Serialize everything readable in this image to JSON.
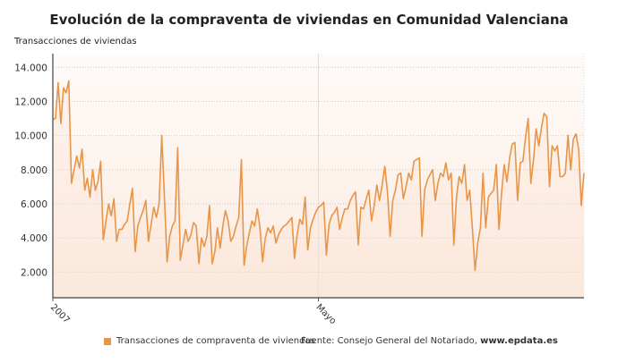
{
  "chart_data": {
    "type": "area",
    "title": "Evolución de la compraventa de viviendas en Comunidad Valenciana",
    "ylabel": "Transacciones de viviendas",
    "xlabel": "",
    "ylim": [
      500,
      14800
    ],
    "yticks": [
      2000,
      4000,
      6000,
      8000,
      10000,
      12000,
      14000
    ],
    "ytick_labels": [
      "2.000",
      "4.000",
      "6.000",
      "8.000",
      "10.000",
      "12.000",
      "14.000"
    ],
    "x_ticks": [
      {
        "label": "2007",
        "index": 0
      },
      {
        "label": "Mayo",
        "index": 100
      }
    ],
    "grid": true,
    "legend_position": "bottom-left",
    "color": "#e8954a",
    "series": [
      {
        "name": "Transacciones de compraventa de viviendas",
        "values": [
          10950,
          11000,
          13100,
          10700,
          12800,
          12500,
          13200,
          7200,
          8000,
          8800,
          8100,
          9200,
          6800,
          7500,
          6400,
          8000,
          6800,
          7300,
          8500,
          3900,
          5000,
          6000,
          5300,
          6300,
          3800,
          4500,
          4500,
          4800,
          5000,
          6000,
          6900,
          3200,
          4700,
          5200,
          5600,
          6200,
          3800,
          4800,
          5800,
          5200,
          6000,
          10000,
          6500,
          2600,
          4100,
          4700,
          5000,
          9300,
          2700,
          3600,
          4500,
          3800,
          4200,
          4900,
          4700,
          2500,
          4000,
          3500,
          4100,
          5900,
          2500,
          3200,
          4600,
          3400,
          4700,
          5600,
          5000,
          3800,
          4100,
          4700,
          5200,
          8600,
          2400,
          3500,
          4300,
          5000,
          4700,
          5700,
          4600,
          2600,
          4000,
          4600,
          4300,
          4700,
          3700,
          4200,
          4500,
          4700,
          4800,
          5000,
          5200,
          2800,
          4200,
          5100,
          4800,
          6400,
          3300,
          4600,
          5100,
          5500,
          5800,
          5900,
          6100,
          3000,
          4800,
          5300,
          5500,
          5800,
          4500,
          5200,
          5700,
          5700,
          6200,
          6500,
          6700,
          3600,
          5800,
          5700,
          6300,
          6800,
          5000,
          5900,
          7100,
          6200,
          7100,
          8200,
          6700,
          4100,
          6200,
          6800,
          7700,
          7800,
          6300,
          7000,
          7800,
          7400,
          8500,
          8600,
          8700,
          4100,
          6800,
          7400,
          7700,
          8000,
          6200,
          7200,
          7800,
          7600,
          8400,
          7400,
          7800,
          3600,
          6400,
          7600,
          7200,
          8300,
          6200,
          6800,
          4500,
          2100,
          3700,
          4600,
          7800,
          4600,
          6400,
          6600,
          6800,
          8300,
          4500,
          6700,
          8300,
          7300,
          8700,
          9500,
          9600,
          6200,
          8400,
          8500,
          9900,
          11000,
          7200,
          8600,
          10400,
          9400,
          10500,
          11300,
          11100,
          7000,
          9400,
          9100,
          9400,
          7600,
          7600,
          7800,
          10000,
          8000,
          9800,
          10100,
          9200,
          5900,
          7800
        ]
      }
    ]
  },
  "legend": {
    "label": "Transacciones de compraventa de viviendas"
  },
  "source": {
    "prefix": "Fuente: Consejo General del Notariado, ",
    "site": "www.epdata.es"
  }
}
